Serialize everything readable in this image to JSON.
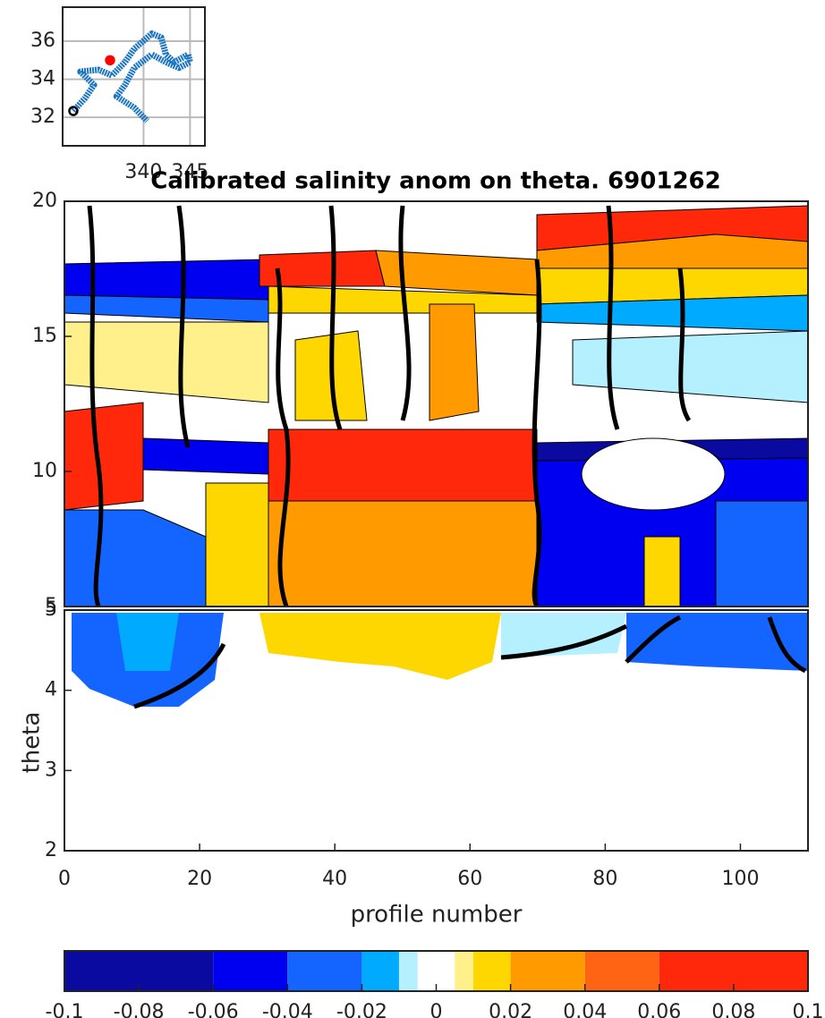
{
  "chart_data": [
    {
      "type": "line",
      "x": [
        332.45,
        333.7,
        334.67,
        333.2,
        335.15,
        336.6,
        338.0,
        339.0,
        340.9,
        341.9,
        342.4,
        343.3,
        344.8,
        345.0,
        343.8,
        342.4,
        340.9,
        339.0,
        338.0,
        337.1,
        339.0,
        340.4
      ],
      "values": [
        32.33,
        33.0,
        33.7,
        34.4,
        34.5,
        34.2,
        34.9,
        35.6,
        36.4,
        36.2,
        35.3,
        34.9,
        35.3,
        34.9,
        34.6,
        34.9,
        35.3,
        34.6,
        33.7,
        33.1,
        32.5,
        31.8
      ],
      "color": "#1a75c4",
      "markers": [
        {
          "x": 336.4,
          "y": 35.0,
          "color": "#ff0000"
        },
        {
          "x": 332.45,
          "y": 32.33,
          "color": "#000000"
        }
      ],
      "xlim": [
        331.3,
        346.6
      ],
      "ylim": [
        30.5,
        37.79
      ],
      "xticks": [
        340,
        345
      ],
      "yticks": [
        32,
        34,
        36
      ],
      "grid": true
    },
    {
      "type": "contour",
      "title": "Calibrated salinity anom on theta. 6901262",
      "xlim": [
        0,
        110
      ],
      "ylim": [
        5,
        20
      ],
      "yticks": [
        5,
        10,
        15,
        20
      ]
    },
    {
      "type": "contour",
      "xlabel": "profile number",
      "ylabel": "theta",
      "xlim": [
        0,
        110
      ],
      "xticks": [
        0,
        20,
        40,
        60,
        80,
        100
      ],
      "ylim": [
        2,
        5
      ],
      "yticks": [
        2,
        3,
        4,
        5
      ]
    },
    {
      "type": "colorbar",
      "levels": [
        -0.1,
        -0.06,
        -0.04,
        -0.02,
        -0.01,
        -0.005,
        0.005,
        0.01,
        0.02,
        0.04,
        0.06,
        0.1
      ],
      "colors": [
        "#0a0aa0",
        "#0000f0",
        "#1464ff",
        "#00aaff",
        "#b4f0ff",
        "#ffffff",
        "#fff08c",
        "#ffd700",
        "#ff9a00",
        "#ff6414",
        "#ff280a"
      ],
      "xlim": [
        -0.1,
        0.1
      ],
      "xticks": [
        -0.1,
        -0.08,
        -0.06,
        -0.04,
        -0.02,
        0,
        0.02,
        0.04,
        0.06,
        0.08,
        0.1
      ]
    }
  ]
}
